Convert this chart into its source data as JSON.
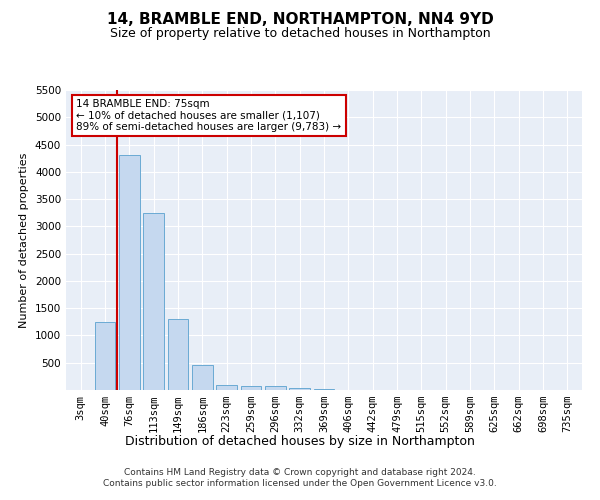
{
  "title": "14, BRAMBLE END, NORTHAMPTON, NN4 9YD",
  "subtitle": "Size of property relative to detached houses in Northampton",
  "xlabel": "Distribution of detached houses by size in Northampton",
  "ylabel": "Number of detached properties",
  "footer_line1": "Contains HM Land Registry data © Crown copyright and database right 2024.",
  "footer_line2": "Contains public sector information licensed under the Open Government Licence v3.0.",
  "categories": [
    "3sqm",
    "40sqm",
    "76sqm",
    "113sqm",
    "149sqm",
    "186sqm",
    "223sqm",
    "259sqm",
    "296sqm",
    "332sqm",
    "369sqm",
    "406sqm",
    "442sqm",
    "479sqm",
    "515sqm",
    "552sqm",
    "589sqm",
    "625sqm",
    "662sqm",
    "698sqm",
    "735sqm"
  ],
  "values": [
    0,
    1250,
    4300,
    3250,
    1300,
    450,
    100,
    75,
    75,
    30,
    10,
    0,
    0,
    0,
    0,
    0,
    0,
    0,
    0,
    0,
    0
  ],
  "bar_color": "#c5d8ef",
  "bar_edge_color": "#6aaad4",
  "annotation_text_line1": "14 BRAMBLE END: 75sqm",
  "annotation_text_line2": "← 10% of detached houses are smaller (1,107)",
  "annotation_text_line3": "89% of semi-detached houses are larger (9,783) →",
  "annotation_box_color": "#ffffff",
  "annotation_box_edge_color": "#cc0000",
  "vline_color": "#cc0000",
  "vline_x": 1.5,
  "ylim": [
    0,
    5500
  ],
  "yticks": [
    0,
    500,
    1000,
    1500,
    2000,
    2500,
    3000,
    3500,
    4000,
    4500,
    5000,
    5500
  ],
  "background_color": "#ffffff",
  "plot_bg_color": "#e8eef7",
  "grid_color": "#ffffff",
  "title_fontsize": 11,
  "subtitle_fontsize": 9,
  "xlabel_fontsize": 9,
  "ylabel_fontsize": 8,
  "tick_fontsize": 7.5,
  "footer_fontsize": 6.5
}
